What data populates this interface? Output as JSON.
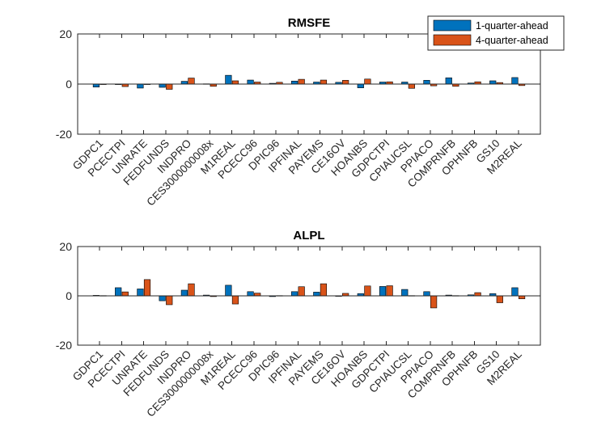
{
  "chart_data": [
    {
      "type": "bar",
      "title": "RMSFE",
      "xlabel": "",
      "ylabel": "",
      "ylim": [
        -20,
        20
      ],
      "yticks": [
        "-20",
        "0",
        "20"
      ],
      "categories": [
        "GDPC1",
        "PCECTPI",
        "UNRATE",
        "FEDFUNDS",
        "INDPRO",
        "CES3000000008x",
        "M1REAL",
        "PCECC96",
        "DPIC96",
        "IPFINAL",
        "PAYEMS",
        "CE16OV",
        "HOANBS",
        "GDPCTPI",
        "CPIAUCSL",
        "PPIACO",
        "COMPRNFB",
        "OPHNFB",
        "GS10",
        "M2REAL"
      ],
      "series": [
        {
          "name": "1-quarter-ahead",
          "color": "#0072BD",
          "values": [
            -1.2,
            -0.2,
            -1.6,
            -1.3,
            1.1,
            0.1,
            3.5,
            1.6,
            0.3,
            1.2,
            0.8,
            0.7,
            -1.5,
            0.8,
            0.8,
            1.5,
            2.5,
            0.4,
            1.3,
            2.6
          ]
        },
        {
          "name": "4-quarter-ahead",
          "color": "#D95319",
          "values": [
            -0.1,
            -1.0,
            -0.1,
            -2.1,
            2.4,
            -0.9,
            1.3,
            0.8,
            0.7,
            1.9,
            1.6,
            1.5,
            2.0,
            0.9,
            -1.7,
            -0.7,
            -0.9,
            0.9,
            0.6,
            -0.6
          ]
        }
      ],
      "legend": "top-right"
    },
    {
      "type": "bar",
      "title": "ALPL",
      "xlabel": "",
      "ylabel": "",
      "ylim": [
        -20,
        20
      ],
      "yticks": [
        "-20",
        "0",
        "20"
      ],
      "categories": [
        "GDPC1",
        "PCECTPI",
        "UNRATE",
        "FEDFUNDS",
        "INDPRO",
        "CES3000000008x",
        "M1REAL",
        "PCECC96",
        "DPIC96",
        "IPFINAL",
        "PAYEMS",
        "CE16OV",
        "HOANBS",
        "GDPCTPI",
        "CPIAUCSL",
        "PPIACO",
        "COMPRNFB",
        "OPHNFB",
        "GS10",
        "M2REAL"
      ],
      "series": [
        {
          "name": "1-quarter-ahead",
          "color": "#0072BD",
          "values": [
            0.2,
            3.3,
            2.8,
            -2.0,
            2.3,
            0.3,
            4.3,
            1.7,
            -0.3,
            1.7,
            1.5,
            0.0,
            0.9,
            3.8,
            2.6,
            1.7,
            0.3,
            0.4,
            0.9,
            3.3
          ]
        },
        {
          "name": "4-quarter-ahead",
          "color": "#D95319",
          "values": [
            0.1,
            1.6,
            6.6,
            -3.6,
            4.9,
            -0.3,
            -3.3,
            1.1,
            0.1,
            3.7,
            4.9,
            1.0,
            4.0,
            4.1,
            0.1,
            -4.9,
            0.1,
            1.3,
            -2.8,
            -1.2
          ]
        }
      ]
    }
  ]
}
